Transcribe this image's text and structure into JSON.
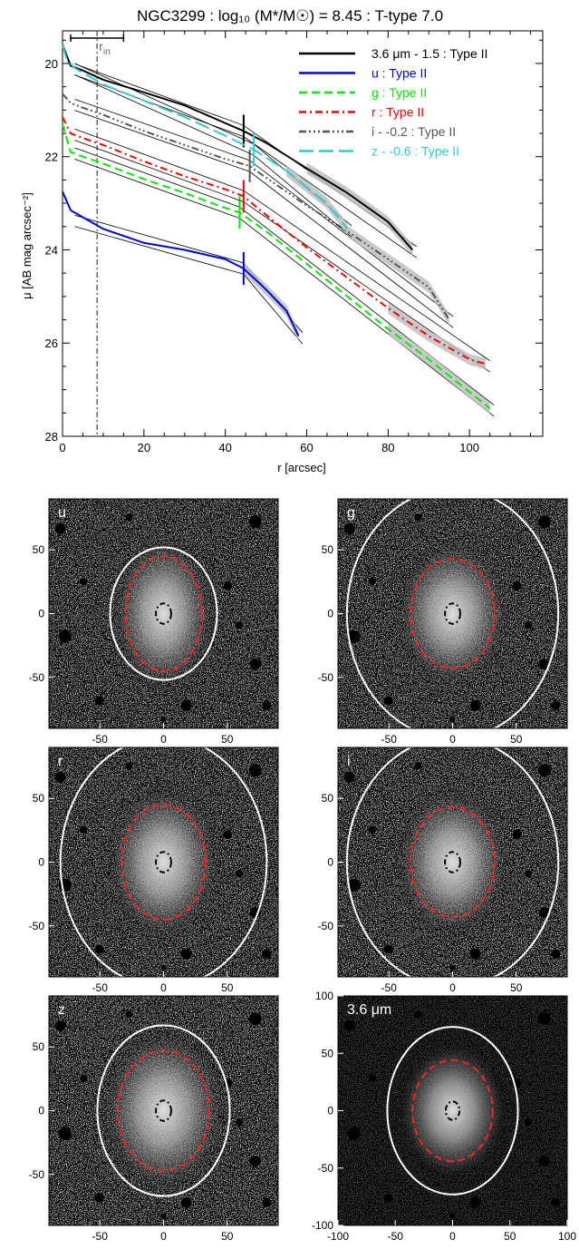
{
  "chart_data": [
    {
      "type": "line",
      "title": "NGC3299 : log₁₀ (M*/M☉) = 8.45 : T-type 7.0",
      "xlabel": "r [arcsec]",
      "ylabel": "μ [AB mag arcsec⁻²]",
      "xlim": [
        0,
        118
      ],
      "ylim": [
        28,
        19.3
      ],
      "y_inverted": true,
      "x_ticks": [
        0,
        20,
        40,
        60,
        80,
        100
      ],
      "y_ticks": [
        20,
        22,
        24,
        26,
        28
      ],
      "grid": false,
      "legend": "top-right",
      "r_in": 8.5,
      "r_in_label": "r",
      "r_in_sub": "in",
      "scale_bar": [
        2,
        15
      ],
      "series": [
        {
          "name": "3.6 μm - 1.5 : Type II",
          "color": "#000000",
          "dash": "",
          "break": 44.5,
          "x": [
            0,
            2,
            5,
            10,
            20,
            30,
            40,
            44.5,
            50,
            60,
            70,
            80,
            86
          ],
          "y": [
            19.6,
            20.05,
            20.15,
            20.35,
            20.62,
            20.9,
            21.28,
            21.45,
            21.7,
            22.25,
            22.78,
            23.4,
            24.0
          ]
        },
        {
          "name": "u : Type II",
          "color": "#0000dd",
          "dash": "",
          "break": 44.5,
          "x": [
            0,
            2,
            5,
            10,
            20,
            30,
            40,
            44.5,
            50,
            55,
            58
          ],
          "y": [
            22.75,
            23.15,
            23.3,
            23.55,
            23.85,
            24.0,
            24.2,
            24.4,
            24.85,
            25.3,
            25.85
          ]
        },
        {
          "name": "g : Type II",
          "color": "#00ee00",
          "dash": "9,5",
          "break": 43.5,
          "x": [
            0,
            2,
            5,
            10,
            20,
            30,
            40,
            43.5,
            50,
            60,
            70,
            80,
            90,
            100,
            105
          ],
          "y": [
            21.3,
            21.9,
            22.0,
            22.15,
            22.48,
            22.78,
            23.1,
            23.2,
            23.6,
            24.3,
            25.0,
            25.7,
            26.35,
            27.05,
            27.4
          ]
        },
        {
          "name": "r : Type II",
          "color": "#ff0000",
          "dash": "8,4,2,4",
          "break": 44.5,
          "x": [
            0,
            2,
            5,
            10,
            20,
            30,
            40,
            44.5,
            50,
            60,
            70,
            80,
            90,
            100,
            104
          ],
          "y": [
            21.15,
            21.5,
            21.6,
            21.75,
            22.1,
            22.42,
            22.7,
            22.85,
            23.25,
            23.95,
            24.6,
            25.25,
            25.85,
            26.35,
            26.45
          ]
        },
        {
          "name": "i - -0.2 : Type II",
          "color": "#555555",
          "dash": "8,3,2,3,2,3,2,3",
          "break": 46.0,
          "x": [
            0,
            2,
            5,
            10,
            20,
            30,
            40,
            46,
            50,
            60,
            70,
            80,
            90,
            95
          ],
          "y": [
            20.65,
            20.85,
            20.95,
            21.1,
            21.45,
            21.75,
            22.05,
            22.2,
            22.45,
            23.05,
            23.6,
            24.2,
            24.8,
            25.5
          ]
        },
        {
          "name": "z - -0.6 : Type II",
          "color": "#33cccc",
          "dash": "16,6",
          "break": 47.0,
          "x": [
            0,
            1,
            3,
            5,
            10,
            20,
            30,
            40,
            47,
            55,
            60,
            65,
            70
          ],
          "y": [
            19.6,
            19.9,
            20.1,
            20.2,
            20.45,
            20.8,
            21.15,
            21.55,
            21.85,
            22.3,
            22.65,
            23.0,
            23.55
          ]
        }
      ]
    },
    {
      "type": "image",
      "panels": [
        {
          "label": "u",
          "x_ticks": [
            -50,
            0,
            50
          ],
          "y_ticks": [
            50,
            0,
            -50
          ],
          "xlim": [
            -90,
            90
          ],
          "ylim": [
            -90,
            90
          ],
          "outer": [
            42,
            52
          ],
          "inner": [
            30,
            45
          ]
        },
        {
          "label": "g",
          "x_ticks": [
            -50,
            0,
            50
          ],
          "y_ticks": [
            50,
            0,
            -50
          ],
          "xlim": [
            -90,
            90
          ],
          "ylim": [
            -90,
            90
          ],
          "outer": [
            83,
            98
          ],
          "inner": [
            33,
            43
          ]
        },
        {
          "label": "r",
          "x_ticks": [
            -50,
            0,
            50
          ],
          "y_ticks": [
            50,
            0,
            -50
          ],
          "xlim": [
            -90,
            90
          ],
          "ylim": [
            -90,
            90
          ],
          "outer": [
            81,
            98
          ],
          "inner": [
            33,
            45
          ]
        },
        {
          "label": "i",
          "x_ticks": [
            -50,
            0,
            50
          ],
          "y_ticks": [
            50,
            0,
            -50
          ],
          "xlim": [
            -90,
            90
          ],
          "ylim": [
            -90,
            90
          ],
          "outer": [
            83,
            98
          ],
          "inner": [
            33,
            43
          ]
        },
        {
          "label": "z",
          "x_ticks": [
            -50,
            0,
            50
          ],
          "y_ticks": [
            50,
            0,
            -50
          ],
          "xlim": [
            -90,
            90
          ],
          "ylim": [
            -90,
            90
          ],
          "outer": [
            52,
            67
          ],
          "inner": [
            36,
            47
          ]
        },
        {
          "label": "3.6 μm",
          "x_ticks": [
            -100,
            -50,
            0,
            50,
            100
          ],
          "y_ticks": [
            100,
            50,
            0,
            -50,
            -100
          ],
          "xlim": [
            -100,
            100
          ],
          "ylim": [
            -100,
            100
          ],
          "outer": [
            57,
            73
          ],
          "inner": [
            35,
            44
          ]
        }
      ]
    }
  ]
}
